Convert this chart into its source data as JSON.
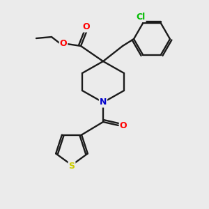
{
  "background_color": "#ebebeb",
  "bond_color": "#1a1a1a",
  "atom_colors": {
    "O": "#ff0000",
    "N": "#0000cc",
    "S": "#cccc00",
    "Cl": "#00bb00",
    "C": "#1a1a1a"
  },
  "figsize": [
    3.0,
    3.0
  ],
  "dpi": 100
}
